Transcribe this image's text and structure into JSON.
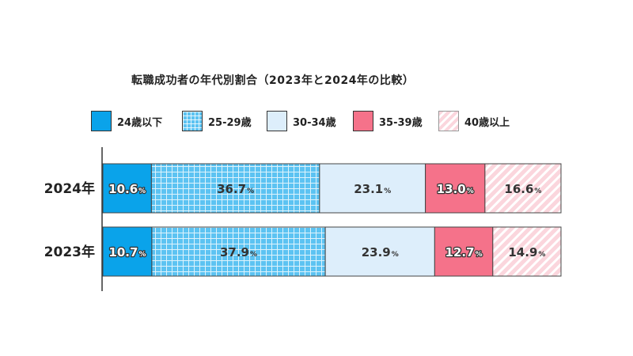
{
  "chart_data": {
    "type": "bar",
    "orientation": "horizontal",
    "stacked": true,
    "title": "転職成功者の年代別割合（2023年と2024年の比較）",
    "categories": [
      "2024年",
      "2023年"
    ],
    "series": [
      {
        "name": "24歳以下",
        "values": [
          10.6,
          10.7
        ],
        "color": "#0aa3ea",
        "pattern": "solid"
      },
      {
        "name": "25-29歳",
        "values": [
          36.7,
          37.9
        ],
        "color": "#5cc3f2",
        "pattern": "grid"
      },
      {
        "name": "30-34歳",
        "values": [
          23.1,
          23.9
        ],
        "color": "#ddeefb",
        "pattern": "solid"
      },
      {
        "name": "35-39歳",
        "values": [
          13.0,
          12.7
        ],
        "color": "#f5728a",
        "pattern": "solid"
      },
      {
        "name": "40歳以上",
        "values": [
          16.6,
          14.9
        ],
        "color": "#fbd6dd",
        "pattern": "hatch"
      }
    ],
    "value_suffix": "%",
    "legend_position": "top",
    "grid": false
  }
}
